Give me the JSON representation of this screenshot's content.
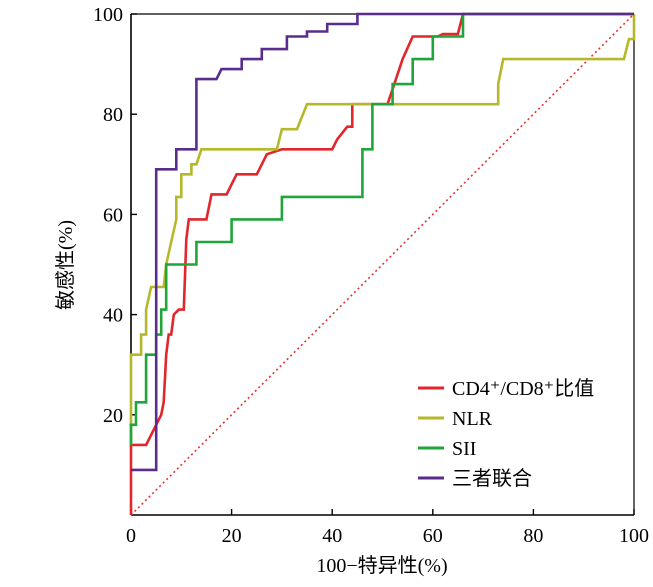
{
  "chart_data": {
    "type": "line",
    "title": "",
    "xlabel": "100−特异性(%)",
    "ylabel": "敏感性(%)",
    "xlim": [
      0,
      100
    ],
    "ylim": [
      0,
      100
    ],
    "xticks": [
      "0",
      "20",
      "40",
      "60",
      "80",
      "100"
    ],
    "yticks": [
      "20",
      "40",
      "60",
      "80",
      "100"
    ],
    "grid": false,
    "legend_position": "bottom-right",
    "reference_line": {
      "name": "reference",
      "color": "#e8312f",
      "style": "dotted",
      "points": [
        [
          0,
          0
        ],
        [
          100,
          100
        ]
      ]
    },
    "series": [
      {
        "name": "CD4⁺/CD8⁺比值",
        "color": "#e1262c",
        "points": [
          [
            0,
            0
          ],
          [
            0,
            14
          ],
          [
            3,
            14
          ],
          [
            6,
            20
          ],
          [
            6.5,
            22.5
          ],
          [
            7,
            32
          ],
          [
            7.5,
            36
          ],
          [
            8,
            36
          ],
          [
            8.5,
            40
          ],
          [
            9.5,
            41
          ],
          [
            10.5,
            41
          ],
          [
            11,
            55
          ],
          [
            11.5,
            59
          ],
          [
            14,
            59
          ],
          [
            15,
            59
          ],
          [
            16,
            64
          ],
          [
            19,
            64
          ],
          [
            20,
            66
          ],
          [
            21,
            68
          ],
          [
            24,
            68
          ],
          [
            25,
            68
          ],
          [
            26,
            70
          ],
          [
            27,
            72
          ],
          [
            30,
            73
          ],
          [
            40,
            73
          ],
          [
            41,
            75
          ],
          [
            43,
            77.5
          ],
          [
            44,
            77.5
          ],
          [
            44,
            82
          ],
          [
            51,
            82
          ],
          [
            52,
            85
          ],
          [
            54,
            91
          ],
          [
            56,
            95.5
          ],
          [
            61,
            95.5
          ],
          [
            62,
            96
          ],
          [
            65,
            96
          ],
          [
            66,
            100
          ],
          [
            100,
            100
          ]
        ]
      },
      {
        "name": "NLR",
        "color": "#b5b82a",
        "points": [
          [
            0,
            14
          ],
          [
            0,
            32
          ],
          [
            2,
            32
          ],
          [
            2,
            36
          ],
          [
            3,
            36
          ],
          [
            3,
            41
          ],
          [
            4,
            45.5
          ],
          [
            6.5,
            45.5
          ],
          [
            7,
            50
          ],
          [
            8,
            54.5
          ],
          [
            9,
            59
          ],
          [
            9,
            63.5
          ],
          [
            10,
            63.5
          ],
          [
            10,
            68
          ],
          [
            12,
            68
          ],
          [
            12,
            70
          ],
          [
            13,
            70
          ],
          [
            14,
            73
          ],
          [
            29,
            73
          ],
          [
            30,
            77
          ],
          [
            33,
            77
          ],
          [
            35,
            82
          ],
          [
            73,
            82
          ],
          [
            73,
            86
          ],
          [
            74,
            91
          ],
          [
            98,
            91
          ],
          [
            99,
            95
          ],
          [
            100,
            95
          ],
          [
            100,
            100
          ]
        ]
      },
      {
        "name": "SII",
        "color": "#1fa53a",
        "points": [
          [
            0,
            14
          ],
          [
            0,
            18
          ],
          [
            1,
            18
          ],
          [
            1,
            22.5
          ],
          [
            3,
            22.5
          ],
          [
            3,
            32
          ],
          [
            5,
            32
          ],
          [
            5,
            36
          ],
          [
            6,
            36
          ],
          [
            6,
            41
          ],
          [
            7,
            41
          ],
          [
            7,
            50
          ],
          [
            13,
            50
          ],
          [
            13,
            54.5
          ],
          [
            20,
            54.5
          ],
          [
            20,
            59
          ],
          [
            30,
            59
          ],
          [
            30,
            63.5
          ],
          [
            46,
            63.5
          ],
          [
            46,
            73
          ],
          [
            48,
            73
          ],
          [
            48,
            82
          ],
          [
            52,
            82
          ],
          [
            52,
            86
          ],
          [
            56,
            86
          ],
          [
            56,
            91
          ],
          [
            60,
            91
          ],
          [
            60,
            95.5
          ],
          [
            66,
            95.5
          ],
          [
            66,
            100
          ],
          [
            100,
            100
          ]
        ]
      },
      {
        "name": "三者联合",
        "color": "#5a2d8c",
        "points": [
          [
            0,
            9
          ],
          [
            4,
            9
          ],
          [
            4,
            9
          ],
          [
            5,
            9
          ],
          [
            5,
            69
          ],
          [
            9,
            69
          ],
          [
            9,
            73
          ],
          [
            13,
            73
          ],
          [
            13,
            87
          ],
          [
            17,
            87
          ],
          [
            18,
            89
          ],
          [
            22,
            89
          ],
          [
            22,
            91
          ],
          [
            26,
            91
          ],
          [
            26,
            93
          ],
          [
            31,
            93
          ],
          [
            31,
            95.5
          ],
          [
            35,
            95.5
          ],
          [
            35,
            96.5
          ],
          [
            39,
            96.5
          ],
          [
            39,
            98
          ],
          [
            45,
            98
          ],
          [
            45,
            100
          ],
          [
            100,
            100
          ]
        ]
      }
    ]
  }
}
